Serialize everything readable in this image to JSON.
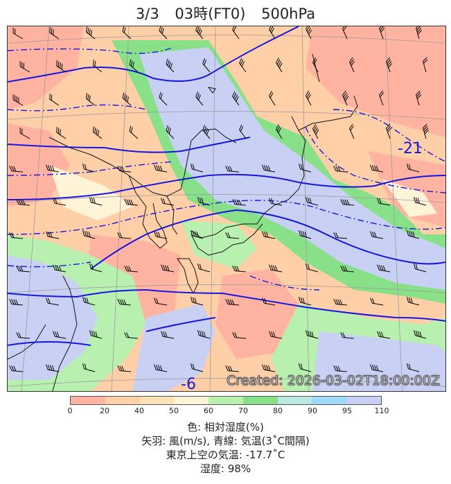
{
  "title": {
    "date": "3/3",
    "time": "03時(FT0)",
    "level": "500hPa"
  },
  "map": {
    "contour_labels": [
      "-21",
      "-6"
    ],
    "created_stamp": "Created: 2026-03-02T18:00:00Z"
  },
  "colorbar": {
    "ticks": [
      "0",
      "20",
      "40",
      "50",
      "60",
      "70",
      "80",
      "90",
      "95",
      "110"
    ],
    "colors": [
      "#ffb3a0",
      "#ffcfa8",
      "#ffe3b8",
      "#fff3d8",
      "#b8f0b0",
      "#88e088",
      "#b8e8e0",
      "#9fd8f8",
      "#c8d0f4"
    ]
  },
  "legend": {
    "line1": "色: 相対湿度(%)",
    "line2": "矢羽: 風(m/s), 青線: 気温(3˚C間隔)",
    "line3": "東京上空の気温: -17.7˚C",
    "line4": "湿度: 98%"
  },
  "colors": {
    "contour": "#1515e0",
    "coast": "#111111"
  }
}
